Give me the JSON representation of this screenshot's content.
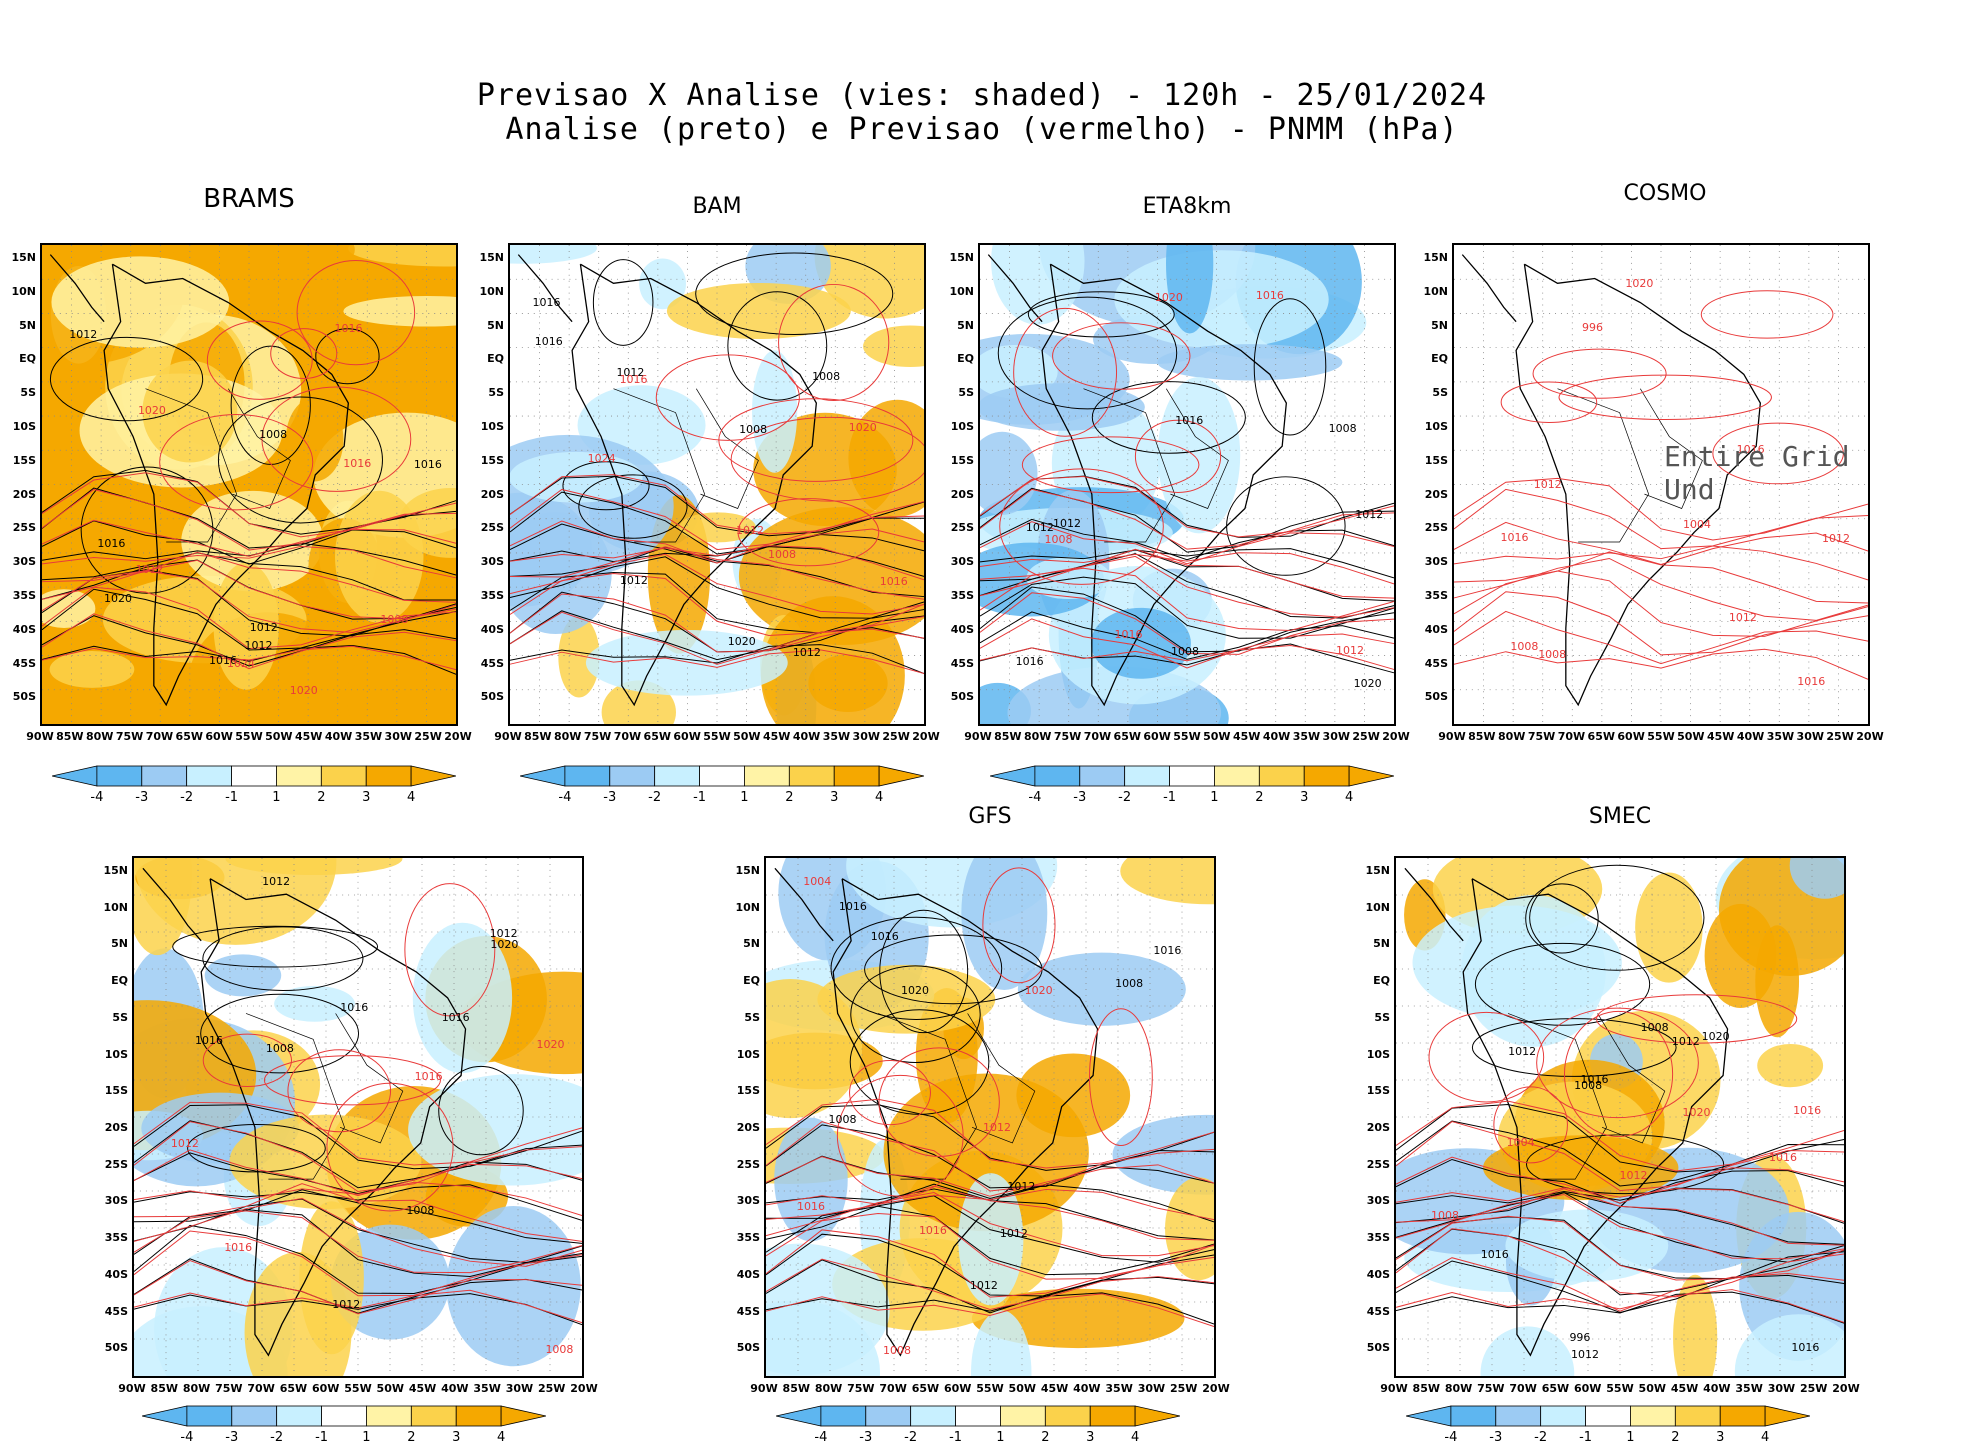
{
  "header": {
    "line1": "Previsao X Analise (vies: shaded) - 120h - 25/01/2024",
    "line2": "Analise (preto) e Previsao (vermelho) - PNMM (hPa)"
  },
  "lat_ticks": [
    "15N",
    "10N",
    "5N",
    "EQ",
    "5S",
    "10S",
    "15S",
    "20S",
    "25S",
    "30S",
    "35S",
    "40S",
    "45S",
    "50S"
  ],
  "lon_ticks": [
    "90W",
    "85W",
    "80W",
    "75W",
    "70W",
    "65W",
    "60W",
    "55W",
    "50W",
    "45W",
    "40W",
    "35W",
    "30W",
    "25W",
    "20W"
  ],
  "colorbar_labels": [
    "-4",
    "-3",
    "-2",
    "-1",
    "1",
    "2",
    "3",
    "4"
  ],
  "colors": {
    "pos_strong": "#f5a800",
    "pos_mid": "#fbd24b",
    "pos_light": "#fff3a6",
    "neg_light": "#c8f0ff",
    "neg_mid": "#9ccbf3",
    "neg_strong": "#5eb6f0",
    "analysis": "#000000",
    "forecast": "#e83a3a"
  },
  "panels": [
    {
      "id": "brams",
      "title": "BRAMS",
      "labels_black": [
        "1016",
        "1012",
        "1008",
        "1012",
        "1016",
        "1020",
        "1012",
        "1016"
      ],
      "labels_red": [
        "1016",
        "1020",
        "1012",
        "1008",
        "1024",
        "1020",
        "1016"
      ]
    },
    {
      "id": "bam",
      "title": "BAM",
      "labels_black": [
        "1012",
        "1016",
        "1012",
        "1008",
        "1016",
        "1020",
        "1012",
        "1008"
      ],
      "labels_red": [
        "1016",
        "1012",
        "1008",
        "1024",
        "1020",
        "1016"
      ]
    },
    {
      "id": "eta8km",
      "title": "ETA8km",
      "labels_black": [
        "1012",
        "1016",
        "1008",
        "1012",
        "1016",
        "1020",
        "1012",
        "1008"
      ],
      "labels_red": [
        "1016",
        "1012",
        "1008",
        "1020",
        "1016"
      ]
    },
    {
      "id": "cosmo",
      "title": "COSMO",
      "message": "Entire Grid Und",
      "labels_black": [],
      "labels_red": [
        "1016",
        "1012",
        "1008",
        "1012",
        "1016",
        "1020",
        "1016",
        "1012",
        "1008",
        "996",
        "1004"
      ]
    },
    {
      "id": "unnamed",
      "title": "",
      "labels_black": [
        "1016",
        "1012",
        "1008",
        "1012",
        "1016",
        "1020",
        "1016",
        "1012",
        "1008"
      ],
      "labels_red": [
        "1016",
        "1012",
        "1020",
        "1016",
        "1008"
      ]
    },
    {
      "id": "gfs",
      "title": "GFS",
      "labels_black": [
        "1012",
        "1016",
        "1012",
        "1008",
        "1016",
        "1020",
        "1016",
        "1012",
        "1008"
      ],
      "labels_red": [
        "1016",
        "1012",
        "1008",
        "1020",
        "1016",
        "1004"
      ]
    },
    {
      "id": "smec",
      "title": "SMEC",
      "labels_black": [
        "1012",
        "1016",
        "1012",
        "1008",
        "1016",
        "1020",
        "1016",
        "1012",
        "1008",
        "996"
      ],
      "labels_red": [
        "1016",
        "1012",
        "1008",
        "1020",
        "1016",
        "1004"
      ]
    }
  ]
}
